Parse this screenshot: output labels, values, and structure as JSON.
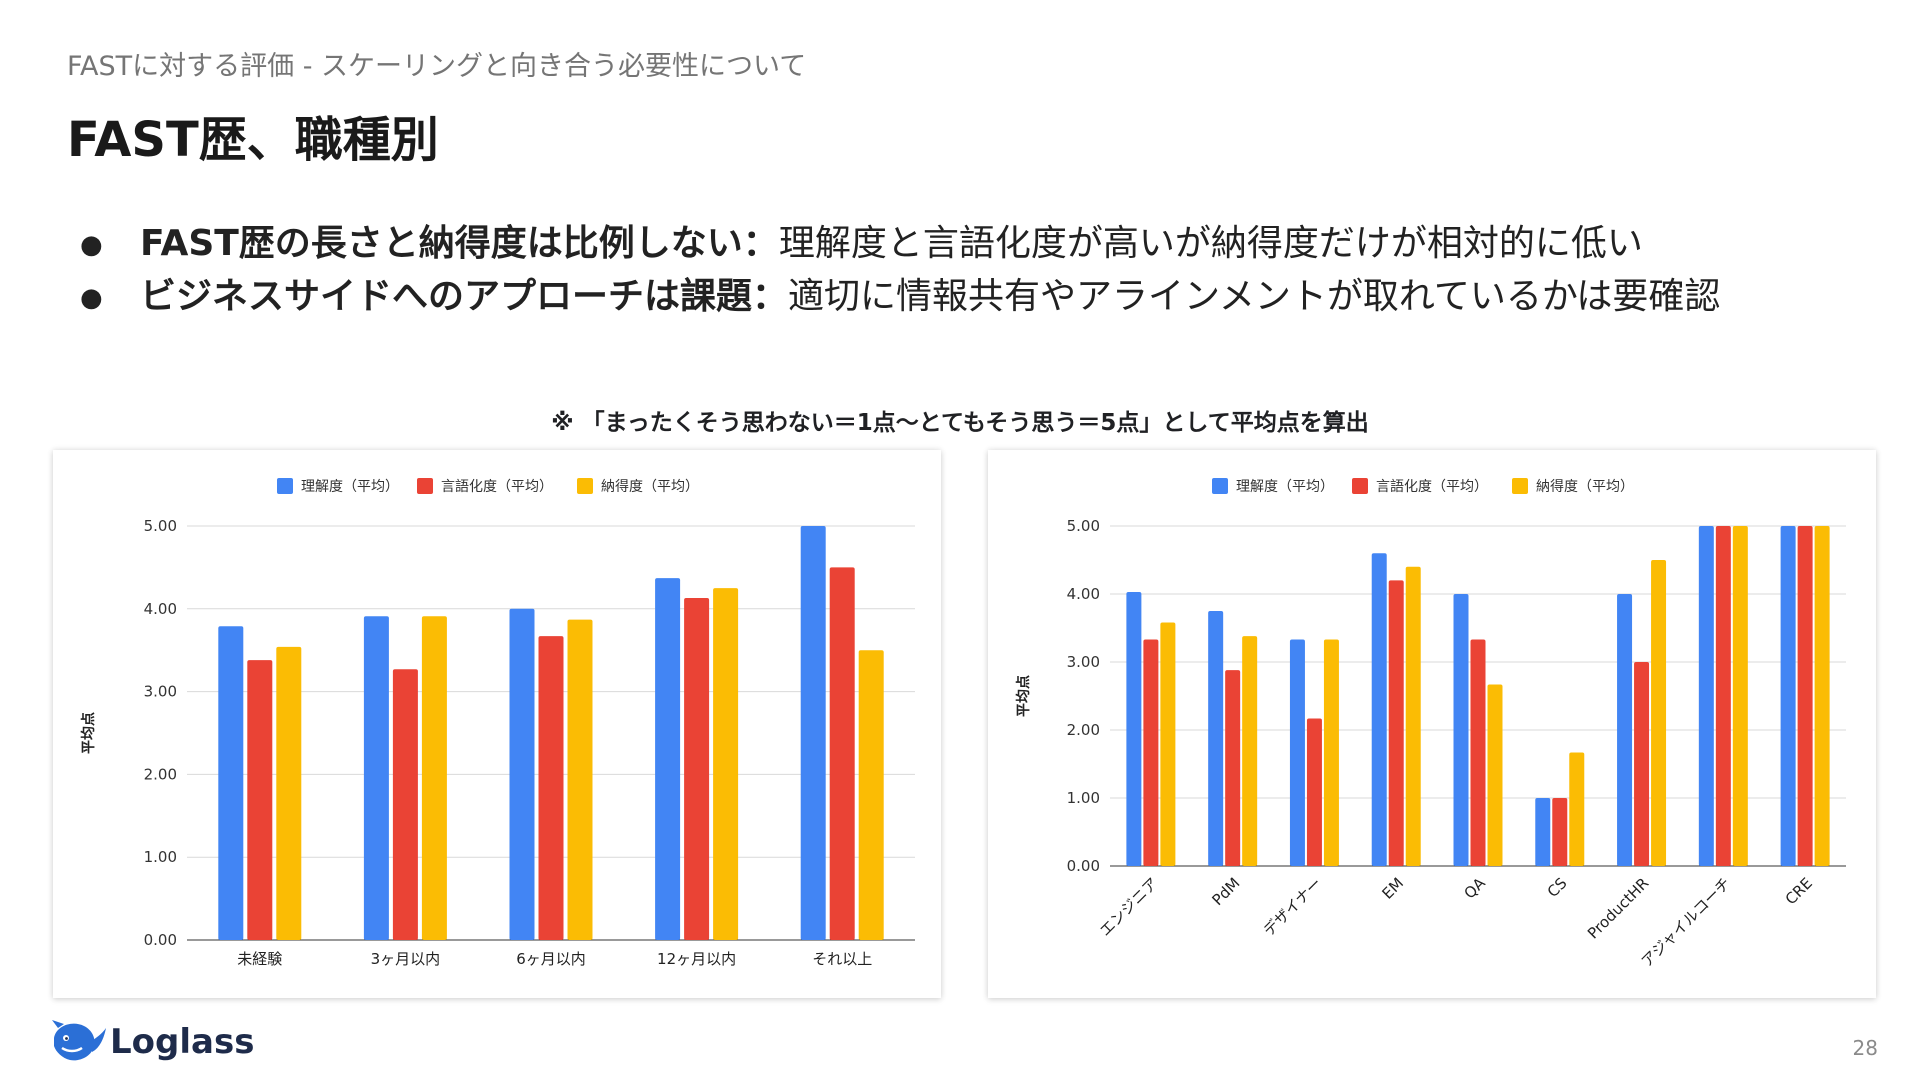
{
  "slide": {
    "subtitle": "FASTに対する評価 - スケーリングと向き合う必要性について",
    "title": "FAST歴、職種別",
    "bullets": [
      {
        "bold": "FAST歴の長さと納得度は比例しない：",
        "text": "理解度と言語化度が高いが納得度だけが相対的に低い"
      },
      {
        "bold": "ビジネスサイドへのアプローチは課題：",
        "text": "適切に情報共有やアラインメントが取れているかは要確認"
      }
    ],
    "bullet_symbol": "●",
    "note": "※ 「まったくそう思わない＝1点〜とてもそう思う＝5点」として平均点を算出",
    "logo_text": "Loglass",
    "page_number": "28"
  },
  "colors": {
    "series": [
      "#4285F4",
      "#EA4335",
      "#FBBC04"
    ],
    "grid": "#d9d9d9",
    "axis": "#333333",
    "logo": "#2b6fd6"
  },
  "chart_data": [
    {
      "type": "bar",
      "categories": [
        "未経験",
        "3ヶ月以内",
        "6ヶ月以内",
        "12ヶ月以内",
        "それ以上"
      ],
      "series": [
        {
          "name": "理解度（平均）",
          "values": [
            3.79,
            3.91,
            4.0,
            4.37,
            5.0
          ]
        },
        {
          "name": "言語化度（平均）",
          "values": [
            3.38,
            3.27,
            3.67,
            4.13,
            4.5
          ]
        },
        {
          "name": "納得度（平均）",
          "values": [
            3.54,
            3.91,
            3.87,
            4.25,
            3.5
          ]
        }
      ],
      "xlabel": "",
      "ylabel": "平均点",
      "ylim": [
        0,
        5
      ],
      "yticks": [
        "0.00",
        "1.00",
        "2.00",
        "3.00",
        "4.00",
        "5.00"
      ],
      "legend": "top",
      "grid": true,
      "rotate_labels": false
    },
    {
      "type": "bar",
      "categories": [
        "エンジニア",
        "PdM",
        "デザイナー",
        "EM",
        "QA",
        "CS",
        "ProductHR",
        "アジャイルコーチ",
        "CRE"
      ],
      "series": [
        {
          "name": "理解度（平均）",
          "values": [
            4.03,
            3.75,
            3.33,
            4.6,
            4.0,
            1.0,
            4.0,
            5.0,
            5.0
          ]
        },
        {
          "name": "言語化度（平均）",
          "values": [
            3.33,
            2.88,
            2.17,
            4.2,
            3.33,
            1.0,
            3.0,
            5.0,
            5.0
          ]
        },
        {
          "name": "納得度（平均）",
          "values": [
            3.58,
            3.38,
            3.33,
            4.4,
            2.67,
            1.67,
            4.5,
            5.0,
            5.0
          ]
        }
      ],
      "xlabel": "",
      "ylabel": "平均点",
      "ylim": [
        0,
        5
      ],
      "yticks": [
        "0.00",
        "1.00",
        "2.00",
        "3.00",
        "4.00",
        "5.00"
      ],
      "legend": "top",
      "grid": true,
      "rotate_labels": true
    }
  ]
}
